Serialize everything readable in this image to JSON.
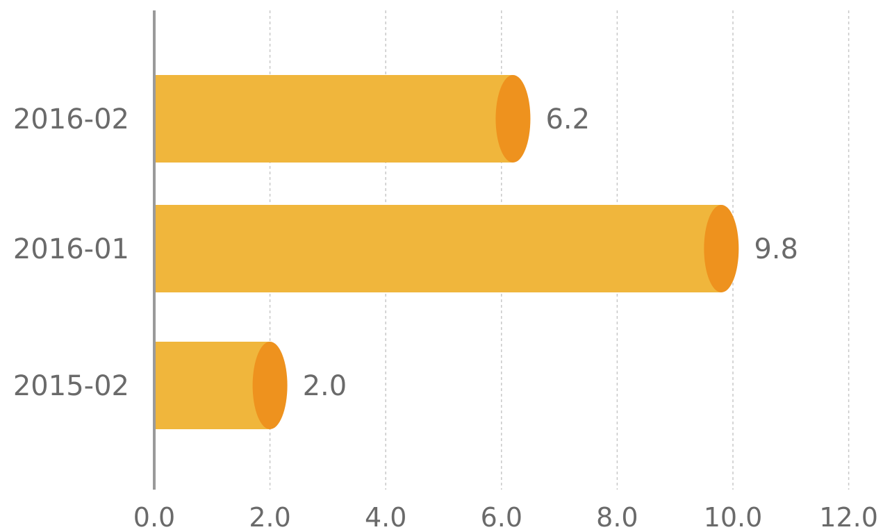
{
  "chart_data": {
    "type": "bar",
    "orientation": "horizontal",
    "categories": [
      "2016-02",
      "2016-01",
      "2015-02"
    ],
    "values": [
      6.2,
      9.8,
      2.0
    ],
    "value_labels": [
      "6.2",
      "9.8",
      "2.0"
    ],
    "xlim": [
      0,
      12
    ],
    "x_ticks": [
      0,
      2,
      4,
      6,
      8,
      10,
      12
    ],
    "x_tick_labels": [
      "0.0",
      "2.0",
      "4.0",
      "6.0",
      "8.0",
      "10.0",
      "12.0"
    ],
    "grid": "vertical-dashed",
    "bar_style": "cylinder",
    "colors": {
      "bar_body": "#F0B63C",
      "bar_cap": "#EE921E",
      "axis": "#9a9a9a",
      "grid": "#c8c8c8",
      "text": "#6a6a6a"
    }
  }
}
